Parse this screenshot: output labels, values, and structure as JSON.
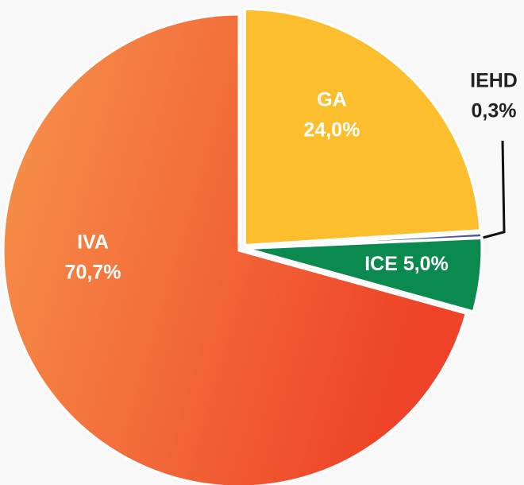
{
  "chart_data": {
    "type": "pie",
    "categories": [
      "GA",
      "IEHD",
      "ICE",
      "IVA"
    ],
    "values": [
      24.0,
      0.3,
      5.0,
      70.7
    ],
    "value_labels": [
      "24,0%",
      "0,3%",
      "5,0%",
      "70,7%"
    ],
    "colors": [
      "#fdbe2e",
      "#4b55a3",
      "#0a8a4f",
      "#f36a3a"
    ]
  }
}
